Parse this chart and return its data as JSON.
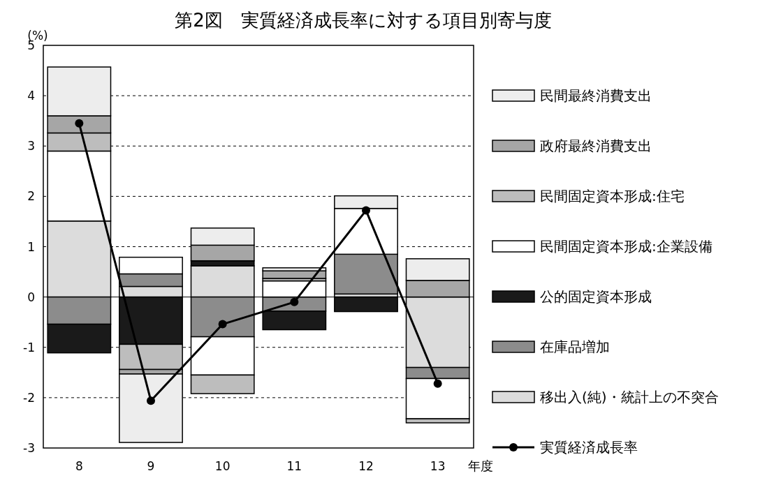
{
  "chart_data": {
    "type": "bar",
    "title": "第2図　実質経済成長率に対する項目別寄与度",
    "xlabel": "年度",
    "ylabel": "(%)",
    "categories": [
      "8",
      "9",
      "10",
      "11",
      "12",
      "13"
    ],
    "stacked": true,
    "ylim": [
      -3,
      5
    ],
    "yticks": [
      -3,
      -2,
      -1,
      0,
      1,
      2,
      3,
      4,
      5
    ],
    "grid": "y",
    "legend": "right",
    "series": [
      {
        "name": "移出入(純)・統計上の不突合",
        "color": "#dcdcdc",
        "values": [
          1.51,
          0.21,
          0.62,
          0,
          0.06,
          -1.4
        ]
      },
      {
        "name": "在庫品増加",
        "color": "#8c8c8c",
        "values": [
          -0.54,
          0.25,
          -0.79,
          -0.28,
          0.79,
          -0.22
        ]
      },
      {
        "name": "公的固定資本形成",
        "color": "#1a1a1a",
        "values": [
          -0.57,
          -0.94,
          0.1,
          -0.37,
          -0.29,
          0
        ]
      },
      {
        "name": "民間固定資本形成:企業設備",
        "color": "#ffffff",
        "values": [
          1.39,
          0.33,
          -0.76,
          0.32,
          0.91,
          -0.8
        ]
      },
      {
        "name": "民間固定資本形成:住宅",
        "color": "#bdbdbd",
        "values": [
          0.36,
          -0.5,
          -0.37,
          0.05,
          0,
          -0.08
        ]
      },
      {
        "name": "政府最終消費支出",
        "color": "#a6a6a6",
        "values": [
          0.34,
          -0.09,
          0.31,
          0.15,
          0,
          0.33
        ]
      },
      {
        "name": "民間最終消費支出",
        "color": "#ededed",
        "values": [
          0.97,
          -1.36,
          0.34,
          0.06,
          0.25,
          0.43
        ]
      },
      {
        "name": "実質経済成長率",
        "type": "line",
        "color": "#000000",
        "marker": "circle",
        "line_style": "solid",
        "values": [
          3.45,
          -2.06,
          -0.54,
          -0.1,
          1.72,
          -1.72
        ]
      }
    ]
  }
}
